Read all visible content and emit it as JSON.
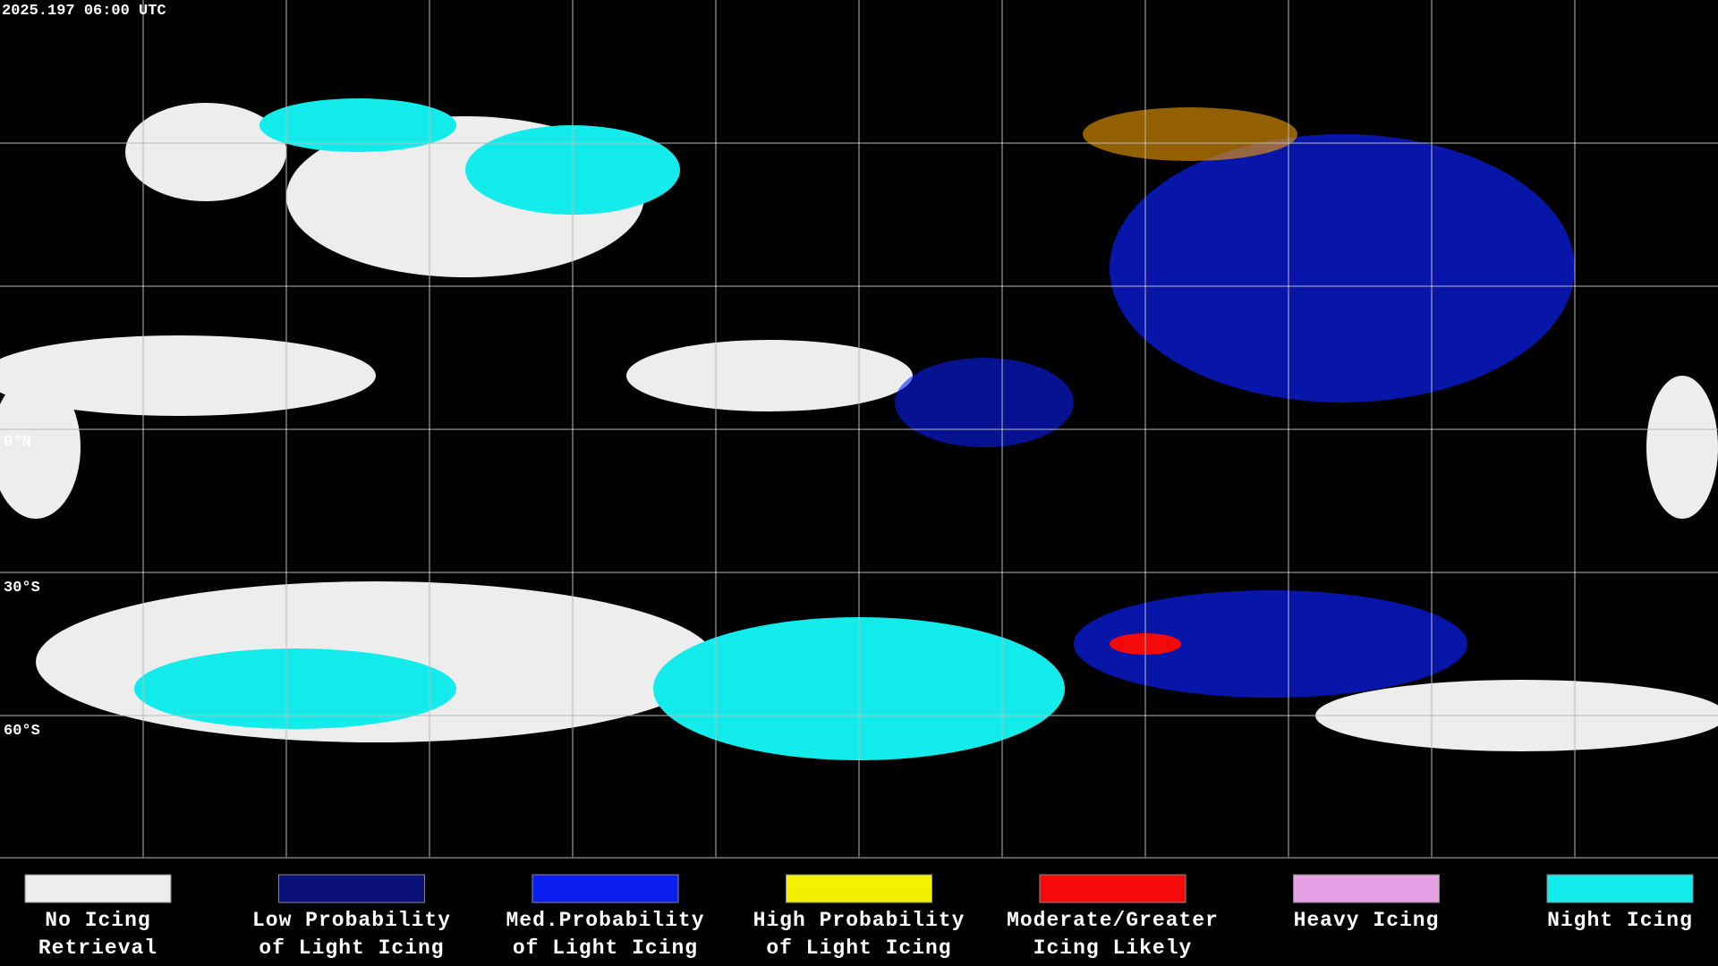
{
  "header": {
    "timestamp": "2025.197 06:00 UTC"
  },
  "map": {
    "lat_labels": [
      "0°N",
      "30°S",
      "60°S"
    ]
  },
  "legend": [
    {
      "lines": [
        "No Icing",
        "Retrieval"
      ],
      "color": "#ededed"
    },
    {
      "lines": [
        "Low Probability",
        "of Light Icing"
      ],
      "color": "#0a0f78"
    },
    {
      "lines": [
        "Med.Probability",
        "of Light Icing"
      ],
      "color": "#0a1ef0"
    },
    {
      "lines": [
        "High Probability",
        "of Light Icing"
      ],
      "color": "#f5f000"
    },
    {
      "lines": [
        "Moderate/Greater",
        "Icing Likely"
      ],
      "color": "#f50a0a"
    },
    {
      "lines": [
        "Heavy Icing"
      ],
      "color": "#e6a0e6"
    },
    {
      "lines": [
        "Night Icing"
      ],
      "color": "#14ebeb"
    }
  ]
}
